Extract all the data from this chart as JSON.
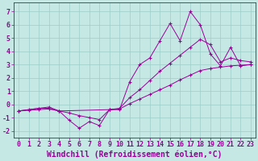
{
  "xlabel": "Windchill (Refroidissement éolien,°C)",
  "bg_color": "#c5e8e5",
  "grid_color": "#9ecdc8",
  "line_color": "#990099",
  "xlim": [
    -0.5,
    23.5
  ],
  "ylim": [
    -2.5,
    7.7
  ],
  "xticks": [
    0,
    1,
    2,
    3,
    4,
    5,
    6,
    7,
    8,
    9,
    10,
    11,
    12,
    13,
    14,
    15,
    16,
    17,
    18,
    19,
    20,
    21,
    22,
    23
  ],
  "yticks": [
    -2,
    -1,
    0,
    1,
    2,
    3,
    4,
    5,
    6,
    7
  ],
  "line1_x": [
    0,
    1,
    2,
    3,
    4,
    5,
    6,
    7,
    8,
    9,
    10,
    11,
    12,
    13,
    14,
    15,
    16,
    17,
    18,
    19,
    20,
    21,
    22,
    23
  ],
  "line1_y": [
    -0.5,
    -0.4,
    -0.3,
    -0.2,
    -0.5,
    -1.2,
    -1.8,
    -1.3,
    -1.6,
    -0.4,
    -0.4,
    1.7,
    3.0,
    3.5,
    4.8,
    6.1,
    4.8,
    7.0,
    6.0,
    3.8,
    2.9,
    4.3,
    2.9,
    3.0
  ],
  "line2_x": [
    0,
    2,
    3,
    4,
    9,
    10,
    11,
    12,
    13,
    14,
    15,
    16,
    17,
    18,
    19,
    20,
    21,
    22,
    23
  ],
  "line2_y": [
    -0.5,
    -0.3,
    -0.3,
    -0.5,
    -0.4,
    -0.3,
    0.5,
    1.1,
    1.8,
    2.5,
    3.1,
    3.7,
    4.3,
    4.9,
    4.5,
    3.2,
    3.5,
    3.3,
    3.2
  ],
  "line3_x": [
    0,
    1,
    2,
    3,
    4,
    5,
    6,
    7,
    8,
    9,
    10,
    11,
    12,
    13,
    14,
    15,
    16,
    17,
    18,
    19,
    20,
    21,
    22,
    23
  ],
  "line3_y": [
    -0.5,
    -0.45,
    -0.4,
    -0.35,
    -0.5,
    -0.65,
    -0.85,
    -1.0,
    -1.15,
    -0.4,
    -0.35,
    0.05,
    0.4,
    0.75,
    1.1,
    1.45,
    1.85,
    2.2,
    2.55,
    2.7,
    2.8,
    2.9,
    2.95,
    3.0
  ],
  "xlabel_fontsize": 7,
  "tick_fontsize": 6,
  "font_family": "monospace"
}
